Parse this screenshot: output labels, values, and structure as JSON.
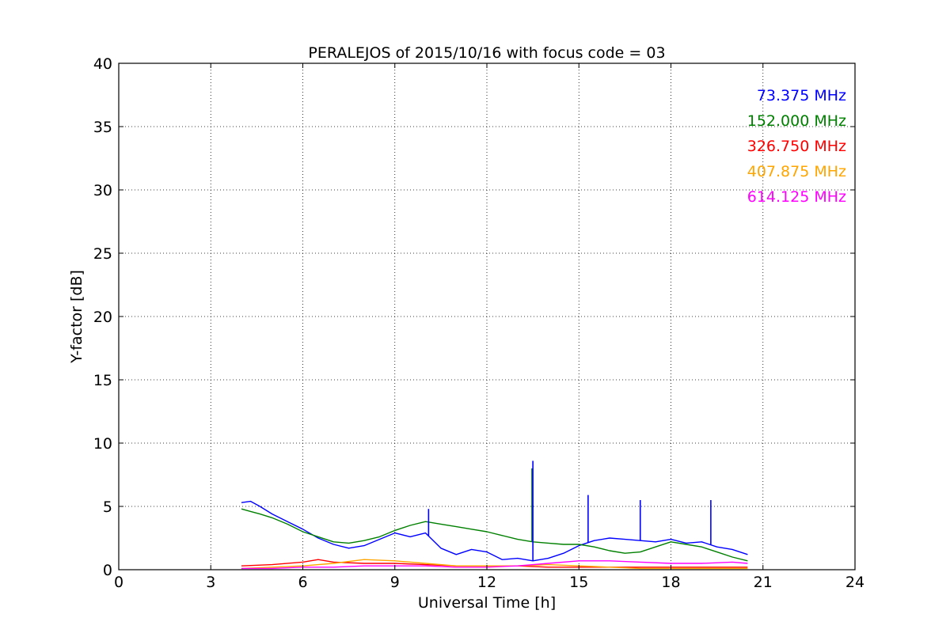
{
  "chart_data": {
    "type": "line",
    "title": "PERALEJOS of 2015/10/16 with focus code = 03",
    "xlabel": "Universal Time [h]",
    "ylabel": "Y-factor [dB]",
    "xlim": [
      0,
      24
    ],
    "ylim": [
      0,
      40
    ],
    "xticks": [
      0,
      3,
      6,
      9,
      12,
      15,
      18,
      21,
      24
    ],
    "yticks": [
      0,
      5,
      10,
      15,
      20,
      25,
      30,
      35,
      40
    ],
    "grid": true,
    "legend_position": "top-right",
    "series": [
      {
        "name": "73.375 MHz",
        "color": "#0000ff",
        "x": [
          4.0,
          4.3,
          4.6,
          5.0,
          5.5,
          6.0,
          6.5,
          7.0,
          7.5,
          8.0,
          8.5,
          9.0,
          9.5,
          10.0,
          10.5,
          11.0,
          11.5,
          12.0,
          12.5,
          13.0,
          13.5,
          14.0,
          14.5,
          15.0,
          15.5,
          16.0,
          16.5,
          17.0,
          17.5,
          18.0,
          18.5,
          19.0,
          19.5,
          20.0,
          20.5
        ],
        "y": [
          5.3,
          5.4,
          5.0,
          4.4,
          3.8,
          3.2,
          2.5,
          2.0,
          1.7,
          1.9,
          2.4,
          2.9,
          2.6,
          2.9,
          1.7,
          1.2,
          1.6,
          1.4,
          0.8,
          0.9,
          0.7,
          0.9,
          1.3,
          1.9,
          2.3,
          2.5,
          2.4,
          2.3,
          2.2,
          2.4,
          2.1,
          2.2,
          1.8,
          1.6,
          1.2
        ]
      },
      {
        "name": "152.000 MHz",
        "color": "#008000",
        "x": [
          4.0,
          4.3,
          4.6,
          5.0,
          5.5,
          6.0,
          6.5,
          7.0,
          7.5,
          8.0,
          8.5,
          9.0,
          9.5,
          10.0,
          10.5,
          11.0,
          11.5,
          12.0,
          12.5,
          13.0,
          13.5,
          14.0,
          14.5,
          15.0,
          15.5,
          16.0,
          16.5,
          17.0,
          17.5,
          18.0,
          18.5,
          19.0,
          19.5,
          20.0,
          20.5
        ],
        "y": [
          4.8,
          4.6,
          4.4,
          4.1,
          3.6,
          3.0,
          2.6,
          2.2,
          2.1,
          2.3,
          2.6,
          3.1,
          3.5,
          3.8,
          3.6,
          3.4,
          3.2,
          3.0,
          2.7,
          2.4,
          2.2,
          2.1,
          2.0,
          2.0,
          1.8,
          1.5,
          1.3,
          1.4,
          1.8,
          2.2,
          2.0,
          1.8,
          1.4,
          1.0,
          0.7
        ]
      },
      {
        "name": "326.750 MHz",
        "color": "#ff0000",
        "x": [
          4.0,
          5.0,
          6.0,
          6.5,
          7.0,
          8.0,
          9.0,
          10.0,
          11.0,
          12.0,
          13.0,
          14.0,
          15.0,
          16.0,
          17.0,
          18.0,
          19.0,
          20.0,
          20.5
        ],
        "y": [
          0.3,
          0.4,
          0.6,
          0.8,
          0.6,
          0.5,
          0.5,
          0.4,
          0.3,
          0.3,
          0.3,
          0.2,
          0.2,
          0.2,
          0.2,
          0.2,
          0.2,
          0.2,
          0.2
        ]
      },
      {
        "name": "407.875 MHz",
        "color": "#ffa500",
        "x": [
          4.0,
          5.0,
          6.0,
          7.0,
          8.0,
          9.0,
          10.0,
          11.0,
          12.0,
          13.0,
          14.0,
          15.0,
          16.0,
          17.0,
          18.0,
          19.0,
          20.0,
          20.5
        ],
        "y": [
          0.1,
          0.2,
          0.3,
          0.5,
          0.8,
          0.7,
          0.5,
          0.3,
          0.3,
          0.3,
          0.4,
          0.3,
          0.2,
          0.1,
          0.1,
          0.1,
          0.1,
          0.1
        ]
      },
      {
        "name": "614.125 MHz",
        "color": "#ff00ff",
        "x": [
          4.0,
          5.0,
          6.0,
          7.0,
          8.0,
          9.0,
          10.0,
          11.0,
          12.0,
          13.0,
          14.0,
          15.0,
          16.0,
          17.0,
          18.0,
          19.0,
          20.0,
          20.5
        ],
        "y": [
          0.1,
          0.1,
          0.2,
          0.2,
          0.3,
          0.3,
          0.3,
          0.2,
          0.2,
          0.3,
          0.5,
          0.7,
          0.7,
          0.6,
          0.5,
          0.5,
          0.6,
          0.5
        ]
      }
    ],
    "spikes": [
      {
        "series": "152.000 MHz",
        "x": 13.47,
        "y": 8.0
      },
      {
        "series": "73.375 MHz",
        "x": 13.5,
        "y": 8.6
      },
      {
        "series": "73.375 MHz",
        "x": 15.3,
        "y": 5.9
      },
      {
        "series": "73.375 MHz",
        "x": 17.0,
        "y": 5.5
      },
      {
        "series": "73.375 MHz",
        "x": 19.3,
        "y": 5.5
      },
      {
        "series": "73.375 MHz",
        "x": 10.1,
        "y": 4.8
      }
    ]
  }
}
